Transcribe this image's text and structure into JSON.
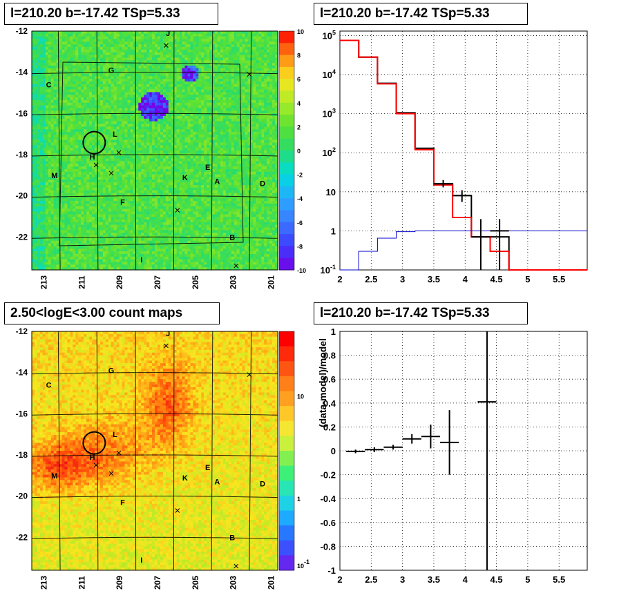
{
  "titles": {
    "top_left": "l=210.20 b=-17.42 TSp=5.33",
    "top_right": "l=210.20 b=-17.42 TSp=5.33",
    "bottom_left": "2.50<logE<3.00 count maps",
    "bottom_right": "l=210.20 b=-17.42 TSp=5.33"
  },
  "chart_data": [
    {
      "id": "ts_map",
      "type": "heatmap",
      "title": "l=210.20 b=-17.42 TSp=5.33",
      "x_ticks": [
        "213",
        "211",
        "209",
        "207",
        "205",
        "203",
        "201"
      ],
      "y_ticks": [
        "-12",
        "-14",
        "-16",
        "-18",
        "-20",
        "-22"
      ],
      "xlim": [
        213.5,
        200.5
      ],
      "ylim": [
        -23.6,
        -12
      ],
      "colorbar": {
        "ticks": [
          "10",
          "8",
          "6",
          "4",
          "2",
          "0",
          "-2",
          "-4",
          "-6",
          "-8",
          "-10"
        ],
        "range": [
          -10,
          10
        ]
      },
      "source_labels": [
        {
          "name": "J",
          "l": 206.3,
          "b": -12.1
        },
        {
          "name": "G",
          "l": 209.3,
          "b": -13.9
        },
        {
          "name": "C",
          "l": 212.6,
          "b": -14.6
        },
        {
          "name": "L",
          "l": 209.1,
          "b": -17.0
        },
        {
          "name": "H",
          "l": 210.3,
          "b": -18.1
        },
        {
          "name": "M",
          "l": 212.3,
          "b": -19.0
        },
        {
          "name": "E",
          "l": 204.2,
          "b": -18.6
        },
        {
          "name": "K",
          "l": 205.4,
          "b": -19.1
        },
        {
          "name": "A",
          "l": 203.7,
          "b": -19.3
        },
        {
          "name": "D",
          "l": 201.3,
          "b": -19.4
        },
        {
          "name": "F",
          "l": 208.7,
          "b": -20.3
        },
        {
          "name": "B",
          "l": 202.9,
          "b": -22.0
        },
        {
          "name": "I",
          "l": 207.7,
          "b": -23.1
        }
      ]
    },
    {
      "id": "spectrum",
      "type": "line",
      "title": "l=210.20 b=-17.42 TSp=5.33",
      "log_y": true,
      "xlim": [
        2,
        5.95
      ],
      "ylim": [
        0.1,
        130000
      ],
      "x_ticks": [
        "2",
        "2.5",
        "3",
        "3.5",
        "4",
        "4.5",
        "5",
        "5.5"
      ],
      "y_ticks": [
        "10^-1",
        "1",
        "10",
        "10^2",
        "10^3",
        "10^4",
        "10^5"
      ],
      "bin_edges": [
        2.0,
        2.3,
        2.6,
        2.9,
        3.2,
        3.5,
        3.8,
        4.1,
        4.4,
        4.7,
        5.95
      ],
      "series": [
        {
          "color": "#000000",
          "values": [
            75000,
            28000,
            6000,
            1050,
            130,
            16,
            8,
            0.7,
            0.7,
            0.1
          ]
        },
        {
          "color": "#ff0000",
          "values": [
            75000,
            28000,
            5800,
            1000,
            120,
            15,
            2.2,
            0.7,
            0.3,
            0.1
          ]
        },
        {
          "color": "#0000cc",
          "values": [
            0.01,
            0.3,
            0.65,
            0.95,
            1.0,
            1.0,
            1.0,
            1.0,
            1.0,
            1.0
          ]
        }
      ],
      "data_points": [
        {
          "x": 3.65,
          "y": 16,
          "xerr": 0.15,
          "ylo": 13,
          "yhi": 20
        },
        {
          "x": 3.95,
          "y": 8,
          "xerr": 0.15,
          "ylo": 5.5,
          "yhi": 11
        },
        {
          "x": 4.25,
          "y": 0.7,
          "xerr": 0.15,
          "ylo": 0.09,
          "yhi": 2
        },
        {
          "x": 4.55,
          "y": 1.0,
          "xerr": 0.15,
          "ylo": 0.09,
          "yhi": 2
        }
      ]
    },
    {
      "id": "count_map",
      "type": "heatmap",
      "title": "2.50<logE<3.00 count maps",
      "x_ticks": [
        "213",
        "211",
        "209",
        "207",
        "205",
        "203",
        "201"
      ],
      "y_ticks": [
        "-12",
        "-14",
        "-16",
        "-18",
        "-20",
        "-22"
      ],
      "xlim": [
        213.5,
        200.5
      ],
      "ylim": [
        -23.6,
        -12
      ],
      "colorbar": {
        "ticks": [
          "10",
          "1",
          "10^-1"
        ],
        "log": true
      },
      "source_labels": [
        {
          "name": "J",
          "l": 206.3,
          "b": -12.1
        },
        {
          "name": "G",
          "l": 209.3,
          "b": -13.9
        },
        {
          "name": "C",
          "l": 212.6,
          "b": -14.6
        },
        {
          "name": "L",
          "l": 209.1,
          "b": -17.0
        },
        {
          "name": "H",
          "l": 210.3,
          "b": -18.1
        },
        {
          "name": "M",
          "l": 212.3,
          "b": -19.0
        },
        {
          "name": "E",
          "l": 204.2,
          "b": -18.6
        },
        {
          "name": "K",
          "l": 205.4,
          "b": -19.1
        },
        {
          "name": "A",
          "l": 203.7,
          "b": -19.3
        },
        {
          "name": "D",
          "l": 201.3,
          "b": -19.4
        },
        {
          "name": "F",
          "l": 208.7,
          "b": -20.3
        },
        {
          "name": "B",
          "l": 202.9,
          "b": -22.0
        },
        {
          "name": "I",
          "l": 207.7,
          "b": -23.1
        }
      ]
    },
    {
      "id": "residuals",
      "type": "scatter",
      "title": "l=210.20 b=-17.42 TSp=5.33",
      "ylabel": "(data-model)/model",
      "xlim": [
        2,
        5.95
      ],
      "ylim": [
        -1,
        1
      ],
      "x_ticks": [
        "2",
        "2.5",
        "3",
        "3.5",
        "4",
        "4.5",
        "5",
        "5.5"
      ],
      "y_ticks": [
        "1",
        "0.8",
        "0.6",
        "0.4",
        "0.2",
        "0",
        "-0.2",
        "-0.4",
        "-0.6",
        "-0.8",
        "-1"
      ],
      "points": [
        {
          "x": 2.25,
          "y": -0.005,
          "xerr": 0.15,
          "ylo": -0.02,
          "yhi": 0.01
        },
        {
          "x": 2.55,
          "y": 0.01,
          "xerr": 0.15,
          "ylo": -0.01,
          "yhi": 0.03
        },
        {
          "x": 2.85,
          "y": 0.03,
          "xerr": 0.15,
          "ylo": 0.01,
          "yhi": 0.05
        },
        {
          "x": 3.15,
          "y": 0.1,
          "xerr": 0.15,
          "ylo": 0.06,
          "yhi": 0.14
        },
        {
          "x": 3.45,
          "y": 0.12,
          "xerr": 0.15,
          "ylo": 0.02,
          "yhi": 0.22
        },
        {
          "x": 3.75,
          "y": 0.07,
          "xerr": 0.15,
          "ylo": -0.2,
          "yhi": 0.34
        },
        {
          "x": 4.35,
          "y": 0.41,
          "xerr": 0.15,
          "ylo": -1.0,
          "yhi": 1.0
        }
      ]
    }
  ]
}
